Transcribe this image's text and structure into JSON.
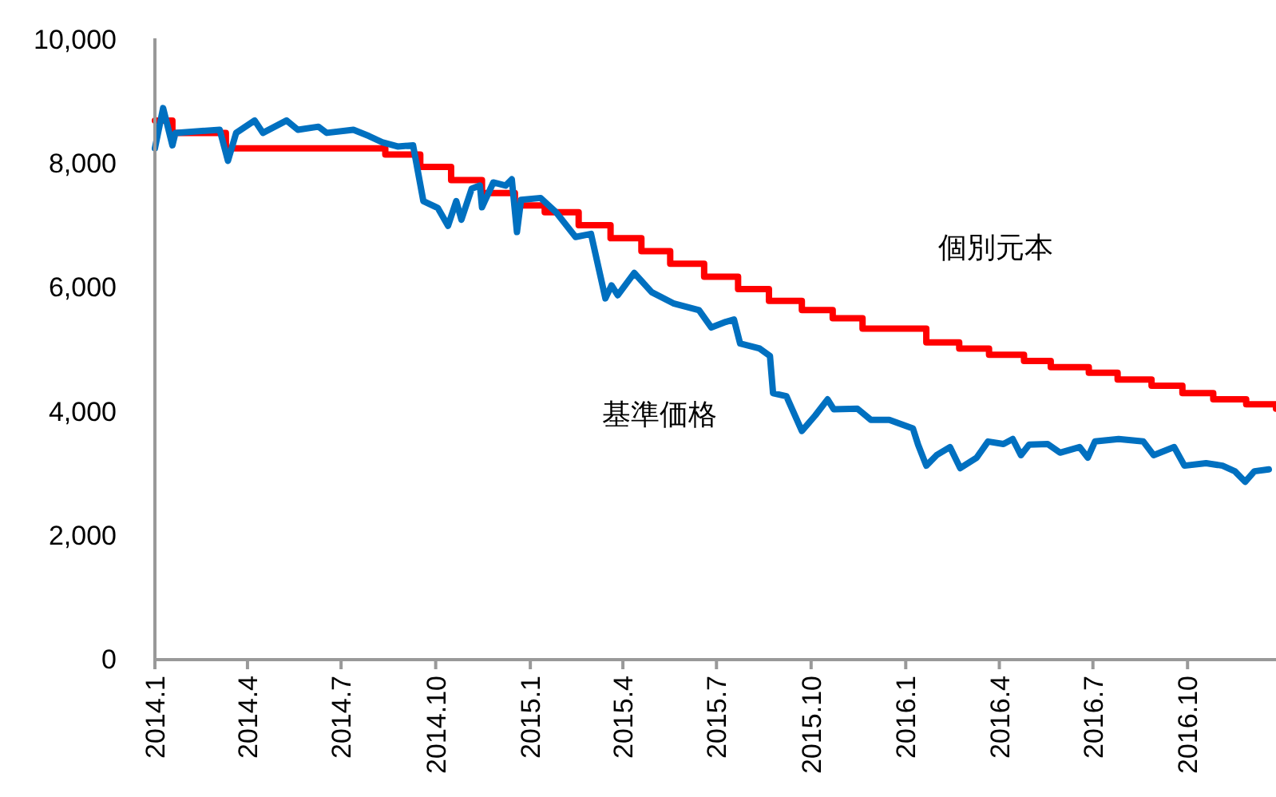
{
  "chart_data": {
    "type": "line",
    "xlim": [
      "2014-01-01",
      "2016-12-26"
    ],
    "xticks": [
      {
        "value": "2014-01-01",
        "label": "2014.1"
      },
      {
        "value": "2014-04-01",
        "label": "2014.4"
      },
      {
        "value": "2014-07-01",
        "label": "2014.7"
      },
      {
        "value": "2014-10-01",
        "label": "2014.10"
      },
      {
        "value": "2015-01-01",
        "label": "2015.1"
      },
      {
        "value": "2015-04-01",
        "label": "2015.4"
      },
      {
        "value": "2015-07-01",
        "label": "2015.7"
      },
      {
        "value": "2015-10-01",
        "label": "2015.10"
      },
      {
        "value": "2016-01-01",
        "label": "2016.1"
      },
      {
        "value": "2016-04-01",
        "label": "2016.4"
      },
      {
        "value": "2016-07-01",
        "label": "2016.7"
      },
      {
        "value": "2016-10-01",
        "label": "2016.10"
      }
    ],
    "ylim": [
      0,
      10000
    ],
    "yticks": [
      0,
      {
        "value": 2000,
        "label": "2,000"
      },
      {
        "value": 4000,
        "label": "4,000"
      },
      {
        "value": 6000,
        "label": "6,000"
      },
      {
        "value": 8000,
        "label": "8,000"
      },
      {
        "value": 10000,
        "label": "10,000"
      }
    ],
    "grid": false,
    "legend": false,
    "marker": "none",
    "line_style": "solid",
    "series": [
      {
        "name": "個別元本",
        "type": "step",
        "color": "#ff0000",
        "x": [
          "2014-01-01",
          "2014-01-18",
          "2014-03-11",
          "2014-08-13",
          "2014-09-16",
          "2014-10-16",
          "2014-11-15",
          "2014-12-17",
          "2015-01-15",
          "2015-02-17",
          "2015-03-20",
          "2015-04-19",
          "2015-05-17",
          "2015-06-19",
          "2015-07-22",
          "2015-08-21",
          "2015-09-22",
          "2015-10-22",
          "2015-11-20",
          "2016-01-21",
          "2016-02-22",
          "2016-03-22",
          "2016-04-25",
          "2016-05-21",
          "2016-06-27",
          "2016-07-25",
          "2016-08-27",
          "2016-09-26",
          "2016-10-26",
          "2016-11-27",
          "2016-12-26"
        ],
        "values": [
          8700,
          8500,
          8250,
          8150,
          7950,
          7740,
          7530,
          7330,
          7220,
          7010,
          6800,
          6590,
          6390,
          6180,
          5980,
          5790,
          5640,
          5510,
          5340,
          5120,
          5020,
          4920,
          4820,
          4720,
          4630,
          4520,
          4420,
          4300,
          4200,
          4120,
          4050
        ]
      },
      {
        "name": "基準価格",
        "color": "#0070c0",
        "x": [
          "2014-01-01",
          "2014-01-09",
          "2014-01-18",
          "2014-01-21",
          "2014-03-05",
          "2014-03-13",
          "2014-03-21",
          "2014-04-08",
          "2014-04-16",
          "2014-05-09",
          "2014-05-20",
          "2014-06-09",
          "2014-06-17",
          "2014-07-13",
          "2014-07-28",
          "2014-08-10",
          "2014-08-25",
          "2014-09-09",
          "2014-09-19",
          "2014-10-03",
          "2014-10-13",
          "2014-10-21",
          "2014-10-26",
          "2014-11-05",
          "2014-11-13",
          "2014-11-15",
          "2014-11-26",
          "2014-12-08",
          "2014-12-14",
          "2014-12-19",
          "2014-12-23",
          "2015-01-11",
          "2015-01-26",
          "2015-02-14",
          "2015-03-01",
          "2015-03-15",
          "2015-03-21",
          "2015-03-27",
          "2015-04-12",
          "2015-04-29",
          "2015-05-20",
          "2015-06-14",
          "2015-06-26",
          "2015-07-10",
          "2015-07-18",
          "2015-07-24",
          "2015-08-12",
          "2015-08-22",
          "2015-08-25",
          "2015-09-07",
          "2015-09-22",
          "2015-10-05",
          "2015-10-17",
          "2015-10-23",
          "2015-11-15",
          "2015-11-28",
          "2015-12-16",
          "2016-01-08",
          "2016-01-13",
          "2016-01-21",
          "2016-01-31",
          "2016-02-13",
          "2016-02-23",
          "2016-03-10",
          "2016-03-21",
          "2016-04-05",
          "2016-04-14",
          "2016-04-22",
          "2016-04-30",
          "2016-05-18",
          "2016-05-30",
          "2016-06-18",
          "2016-06-26",
          "2016-07-03",
          "2016-07-26",
          "2016-08-19",
          "2016-08-29",
          "2016-09-18",
          "2016-09-28",
          "2016-10-19",
          "2016-11-04",
          "2016-11-16",
          "2016-11-26",
          "2016-12-05",
          "2016-12-19"
        ],
        "values": [
          8250,
          8900,
          8300,
          8500,
          8550,
          8050,
          8500,
          8700,
          8500,
          8700,
          8550,
          8600,
          8500,
          8550,
          8450,
          8350,
          8280,
          8300,
          7400,
          7290,
          7000,
          7400,
          7100,
          7600,
          7650,
          7300,
          7700,
          7650,
          7750,
          6900,
          7420,
          7450,
          7220,
          6820,
          6870,
          5830,
          6040,
          5880,
          6240,
          5930,
          5750,
          5640,
          5360,
          5450,
          5490,
          5100,
          5020,
          4900,
          4300,
          4250,
          3690,
          3940,
          4200,
          4040,
          4050,
          3870,
          3870,
          3730,
          3470,
          3130,
          3300,
          3430,
          3090,
          3260,
          3520,
          3480,
          3560,
          3300,
          3470,
          3480,
          3340,
          3430,
          3260,
          3520,
          3560,
          3520,
          3300,
          3430,
          3130,
          3170,
          3130,
          3040,
          2870,
          3040,
          3070
        ]
      }
    ]
  }
}
